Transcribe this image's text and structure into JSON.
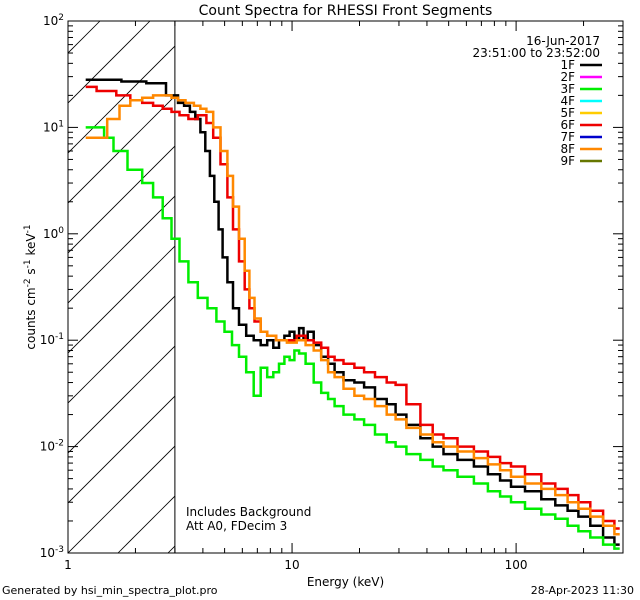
{
  "footer": {
    "generated_by": "Generated by hsi_min_spectra_plot.pro",
    "timestamp": "28-Apr-2023 11:30"
  },
  "chart_data": {
    "type": "line",
    "title": "Count Spectra for RHESSI Front Segments",
    "xlabel": "Energy (keV)",
    "ylabel": "counts cm",
    "ylabel_sup1": "-2",
    "ylabel_mid": " s",
    "ylabel_sup2": "-1",
    "ylabel_end": " keV",
    "ylabel_sup3": "-1",
    "x_scale": "log",
    "y_scale": "log",
    "xlim": [
      1,
      300
    ],
    "ylim": [
      0.001,
      100
    ],
    "x_ticks": [
      {
        "value": 1,
        "label": "1"
      },
      {
        "value": 10,
        "label": "10"
      },
      {
        "value": 100,
        "label": "100"
      }
    ],
    "y_ticks": [
      {
        "value": 0.001,
        "base": "10",
        "exp": "-3"
      },
      {
        "value": 0.01,
        "base": "10",
        "exp": "-2"
      },
      {
        "value": 0.1,
        "base": "10",
        "exp": "-1"
      },
      {
        "value": 1,
        "base": "10",
        "exp": "0"
      },
      {
        "value": 10,
        "base": "10",
        "exp": "1"
      },
      {
        "value": 100,
        "base": "10",
        "exp": "2"
      }
    ],
    "date": "16-Jun-2017",
    "time_range": "23:51:00 to 23:52:00",
    "annotations": [
      "Includes Background",
      "Att A0, FDecim 3"
    ],
    "hatched_region_upper_energy": 3,
    "legend_position": "top-right",
    "legend": [
      {
        "name": "1F",
        "color": "#000000"
      },
      {
        "name": "2F",
        "color": "#ff00ff"
      },
      {
        "name": "3F",
        "color": "#00ee00"
      },
      {
        "name": "4F",
        "color": "#00ffff"
      },
      {
        "name": "5F",
        "color": "#ffcc00"
      },
      {
        "name": "6F",
        "color": "#ee0000"
      },
      {
        "name": "7F",
        "color": "#0000cc"
      },
      {
        "name": "8F",
        "color": "#ff8800"
      },
      {
        "name": "9F",
        "color": "#667700"
      }
    ],
    "series": [
      {
        "name": "1F",
        "color": "#000000",
        "points": [
          [
            1.2,
            28
          ],
          [
            1.5,
            28
          ],
          [
            2.0,
            27
          ],
          [
            2.5,
            26
          ],
          [
            3.0,
            20
          ],
          [
            3.2,
            17
          ],
          [
            3.4,
            16
          ],
          [
            3.6,
            14
          ],
          [
            3.8,
            12
          ],
          [
            4.0,
            9
          ],
          [
            4.2,
            6
          ],
          [
            4.4,
            3.5
          ],
          [
            4.6,
            2
          ],
          [
            4.8,
            1.1
          ],
          [
            5.0,
            0.6
          ],
          [
            5.3,
            0.35
          ],
          [
            5.6,
            0.2
          ],
          [
            6.0,
            0.14
          ],
          [
            6.5,
            0.11
          ],
          [
            7.0,
            0.1
          ],
          [
            7.5,
            0.09
          ],
          [
            8.0,
            0.1
          ],
          [
            8.5,
            0.085
          ],
          [
            9.0,
            0.1
          ],
          [
            9.5,
            0.11
          ],
          [
            10.0,
            0.12
          ],
          [
            10.5,
            0.1
          ],
          [
            11.0,
            0.13
          ],
          [
            11.5,
            0.1
          ],
          [
            12.0,
            0.12
          ],
          [
            13.0,
            0.09
          ],
          [
            14.0,
            0.07
          ],
          [
            15.0,
            0.06
          ],
          [
            16.0,
            0.05
          ],
          [
            18.0,
            0.042
          ],
          [
            20.0,
            0.04
          ],
          [
            22.0,
            0.036
          ],
          [
            25.0,
            0.028
          ],
          [
            28.0,
            0.025
          ],
          [
            30.0,
            0.02
          ],
          [
            35.0,
            0.016
          ],
          [
            40.0,
            0.012
          ],
          [
            45.0,
            0.01
          ],
          [
            50.0,
            0.0085
          ],
          [
            60.0,
            0.0075
          ],
          [
            70.0,
            0.0065
          ],
          [
            80.0,
            0.0055
          ],
          [
            90.0,
            0.0048
          ],
          [
            100.0,
            0.0042
          ],
          [
            120.0,
            0.0038
          ],
          [
            140.0,
            0.0032
          ],
          [
            160.0,
            0.0028
          ],
          [
            180.0,
            0.0025
          ],
          [
            200.0,
            0.0022
          ],
          [
            230.0,
            0.0018
          ],
          [
            260.0,
            0.0014
          ],
          [
            290.0,
            0.0012
          ]
        ]
      },
      {
        "name": "3F",
        "color": "#00ee00",
        "points": [
          [
            1.2,
            10
          ],
          [
            1.4,
            10
          ],
          [
            1.5,
            8
          ],
          [
            1.7,
            6
          ],
          [
            2.0,
            4
          ],
          [
            2.3,
            3
          ],
          [
            2.5,
            2.2
          ],
          [
            2.8,
            1.4
          ],
          [
            3.0,
            0.9
          ],
          [
            3.3,
            0.55
          ],
          [
            3.6,
            0.35
          ],
          [
            4.0,
            0.25
          ],
          [
            4.4,
            0.2
          ],
          [
            4.8,
            0.15
          ],
          [
            5.2,
            0.12
          ],
          [
            5.6,
            0.09
          ],
          [
            6.0,
            0.07
          ],
          [
            6.5,
            0.05
          ],
          [
            7.0,
            0.03
          ],
          [
            7.5,
            0.055
          ],
          [
            8.0,
            0.045
          ],
          [
            8.5,
            0.05
          ],
          [
            9.0,
            0.06
          ],
          [
            9.5,
            0.07
          ],
          [
            10.0,
            0.065
          ],
          [
            10.5,
            0.08
          ],
          [
            11.0,
            0.075
          ],
          [
            12.0,
            0.06
          ],
          [
            13.0,
            0.04
          ],
          [
            14.0,
            0.032
          ],
          [
            15.0,
            0.028
          ],
          [
            16.0,
            0.024
          ],
          [
            18.0,
            0.02
          ],
          [
            20.0,
            0.018
          ],
          [
            22.0,
            0.016
          ],
          [
            25.0,
            0.013
          ],
          [
            28.0,
            0.011
          ],
          [
            30.0,
            0.01
          ],
          [
            35.0,
            0.0085
          ],
          [
            40.0,
            0.0075
          ],
          [
            45.0,
            0.0065
          ],
          [
            50.0,
            0.006
          ],
          [
            60.0,
            0.0052
          ],
          [
            70.0,
            0.0045
          ],
          [
            80.0,
            0.0038
          ],
          [
            90.0,
            0.0034
          ],
          [
            100.0,
            0.003
          ],
          [
            120.0,
            0.0026
          ],
          [
            140.0,
            0.0023
          ],
          [
            160.0,
            0.0021
          ],
          [
            180.0,
            0.0018
          ],
          [
            200.0,
            0.0016
          ],
          [
            230.0,
            0.0014
          ],
          [
            260.0,
            0.0012
          ],
          [
            290.0,
            0.0011
          ]
        ]
      },
      {
        "name": "6F",
        "color": "#ee0000",
        "points": [
          [
            1.2,
            24
          ],
          [
            1.5,
            22
          ],
          [
            1.8,
            20
          ],
          [
            2.0,
            18
          ],
          [
            2.3,
            17
          ],
          [
            2.5,
            16
          ],
          [
            2.8,
            15
          ],
          [
            3.0,
            14
          ],
          [
            3.3,
            13
          ],
          [
            3.6,
            12
          ],
          [
            4.0,
            13
          ],
          [
            4.3,
            11
          ],
          [
            4.6,
            8
          ],
          [
            5.0,
            4.5
          ],
          [
            5.3,
            2.2
          ],
          [
            5.6,
            1.1
          ],
          [
            6.0,
            0.55
          ],
          [
            6.3,
            0.3
          ],
          [
            6.6,
            0.2
          ],
          [
            7.0,
            0.15
          ],
          [
            7.5,
            0.12
          ],
          [
            8.0,
            0.11
          ],
          [
            9.0,
            0.1
          ],
          [
            10.0,
            0.1
          ],
          [
            11.0,
            0.11
          ],
          [
            12.0,
            0.1
          ],
          [
            13.0,
            0.095
          ],
          [
            14.0,
            0.085
          ],
          [
            15.0,
            0.07
          ],
          [
            16.0,
            0.065
          ],
          [
            18.0,
            0.06
          ],
          [
            20.0,
            0.055
          ],
          [
            22.0,
            0.05
          ],
          [
            25.0,
            0.045
          ],
          [
            28.0,
            0.04
          ],
          [
            30.0,
            0.038
          ],
          [
            35.0,
            0.025
          ],
          [
            40.0,
            0.016
          ],
          [
            45.0,
            0.013
          ],
          [
            50.0,
            0.012
          ],
          [
            60.0,
            0.01
          ],
          [
            70.0,
            0.009
          ],
          [
            80.0,
            0.008
          ],
          [
            90.0,
            0.007
          ],
          [
            100.0,
            0.0065
          ],
          [
            120.0,
            0.0055
          ],
          [
            140.0,
            0.0045
          ],
          [
            160.0,
            0.004
          ],
          [
            180.0,
            0.0035
          ],
          [
            200.0,
            0.003
          ],
          [
            230.0,
            0.0025
          ],
          [
            260.0,
            0.002
          ],
          [
            290.0,
            0.0017
          ]
        ]
      },
      {
        "name": "8F",
        "color": "#ff8800",
        "points": [
          [
            1.2,
            8
          ],
          [
            1.4,
            8
          ],
          [
            1.6,
            12
          ],
          [
            1.8,
            16
          ],
          [
            2.0,
            18
          ],
          [
            2.3,
            19
          ],
          [
            2.5,
            20
          ],
          [
            2.8,
            20
          ],
          [
            3.0,
            19
          ],
          [
            3.2,
            18
          ],
          [
            3.5,
            17
          ],
          [
            3.8,
            16
          ],
          [
            4.0,
            15
          ],
          [
            4.3,
            14
          ],
          [
            4.6,
            10
          ],
          [
            5.0,
            6
          ],
          [
            5.3,
            3.5
          ],
          [
            5.6,
            1.8
          ],
          [
            6.0,
            0.9
          ],
          [
            6.3,
            0.45
          ],
          [
            6.6,
            0.25
          ],
          [
            7.0,
            0.16
          ],
          [
            7.5,
            0.12
          ],
          [
            8.0,
            0.11
          ],
          [
            9.0,
            0.1
          ],
          [
            10.0,
            0.095
          ],
          [
            11.0,
            0.1
          ],
          [
            12.0,
            0.09
          ],
          [
            13.0,
            0.08
          ],
          [
            14.0,
            0.065
          ],
          [
            15.0,
            0.05
          ],
          [
            16.0,
            0.045
          ],
          [
            18.0,
            0.035
          ],
          [
            20.0,
            0.03
          ],
          [
            22.0,
            0.028
          ],
          [
            25.0,
            0.024
          ],
          [
            28.0,
            0.02
          ],
          [
            30.0,
            0.018
          ],
          [
            35.0,
            0.015
          ],
          [
            40.0,
            0.013
          ],
          [
            45.0,
            0.011
          ],
          [
            50.0,
            0.01
          ],
          [
            60.0,
            0.009
          ],
          [
            70.0,
            0.0078
          ],
          [
            80.0,
            0.0068
          ],
          [
            90.0,
            0.006
          ],
          [
            100.0,
            0.0052
          ],
          [
            120.0,
            0.0045
          ],
          [
            140.0,
            0.004
          ],
          [
            160.0,
            0.0035
          ],
          [
            180.0,
            0.003
          ],
          [
            200.0,
            0.0026
          ],
          [
            230.0,
            0.0022
          ],
          [
            260.0,
            0.0018
          ],
          [
            290.0,
            0.0015
          ]
        ]
      }
    ]
  }
}
